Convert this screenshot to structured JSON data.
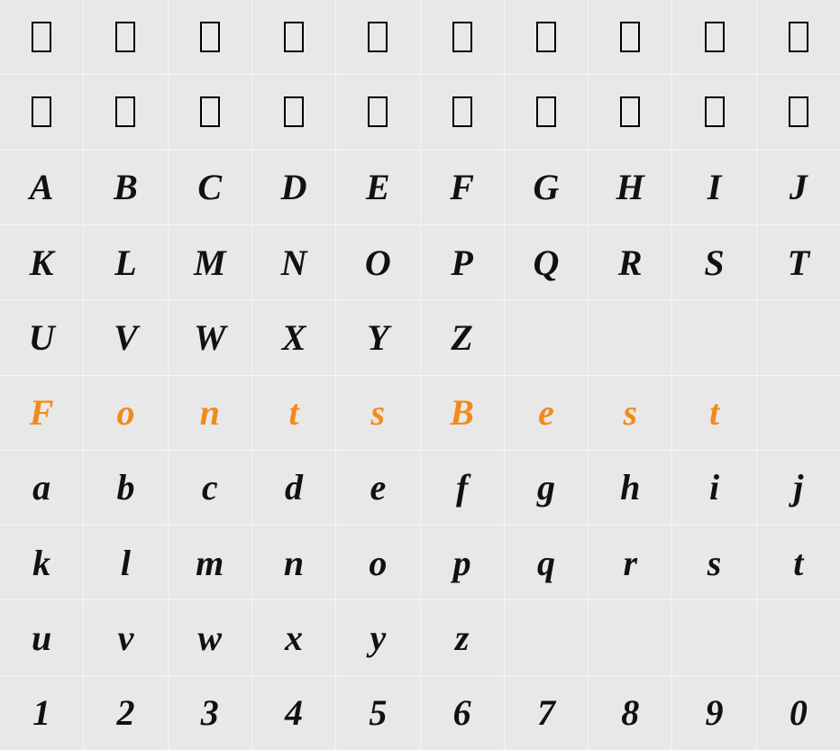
{
  "grid": {
    "columns": 10,
    "rows": 10,
    "background_color": "#e8e8e8",
    "gap_color": "#f5f5f5",
    "text_color": "#111111",
    "highlight_color": "#f28a1a",
    "font_size_pt": 30,
    "font_style": "italic cursive",
    "cells": [
      [
        {
          "t": "box"
        },
        {
          "t": "box"
        },
        {
          "t": "box"
        },
        {
          "t": "box"
        },
        {
          "t": "box"
        },
        {
          "t": "box"
        },
        {
          "t": "box"
        },
        {
          "t": "box"
        },
        {
          "t": "box"
        },
        {
          "t": "box"
        }
      ],
      [
        {
          "t": "box"
        },
        {
          "t": "box"
        },
        {
          "t": "box"
        },
        {
          "t": "box"
        },
        {
          "t": "box"
        },
        {
          "t": "box"
        },
        {
          "t": "box"
        },
        {
          "t": "box"
        },
        {
          "t": "box"
        },
        {
          "t": "box"
        }
      ],
      [
        {
          "c": "A"
        },
        {
          "c": "B"
        },
        {
          "c": "C"
        },
        {
          "c": "D"
        },
        {
          "c": "E"
        },
        {
          "c": "F"
        },
        {
          "c": "G"
        },
        {
          "c": "H"
        },
        {
          "c": "I"
        },
        {
          "c": "J"
        }
      ],
      [
        {
          "c": "K"
        },
        {
          "c": "L"
        },
        {
          "c": "M"
        },
        {
          "c": "N"
        },
        {
          "c": "O"
        },
        {
          "c": "P"
        },
        {
          "c": "Q"
        },
        {
          "c": "R"
        },
        {
          "c": "S"
        },
        {
          "c": "T"
        }
      ],
      [
        {
          "c": "U"
        },
        {
          "c": "V"
        },
        {
          "c": "W"
        },
        {
          "c": "X"
        },
        {
          "c": "Y"
        },
        {
          "c": "Z"
        },
        {
          "e": true
        },
        {
          "e": true
        },
        {
          "e": true
        },
        {
          "e": true
        }
      ],
      [
        {
          "c": "F",
          "hl": true
        },
        {
          "c": "o",
          "hl": true
        },
        {
          "c": "n",
          "hl": true
        },
        {
          "c": "t",
          "hl": true
        },
        {
          "c": "s",
          "hl": true
        },
        {
          "c": "B",
          "hl": true
        },
        {
          "c": "e",
          "hl": true
        },
        {
          "c": "s",
          "hl": true
        },
        {
          "c": "t",
          "hl": true
        },
        {
          "e": true
        }
      ],
      [
        {
          "c": "a"
        },
        {
          "c": "b"
        },
        {
          "c": "c"
        },
        {
          "c": "d"
        },
        {
          "c": "e"
        },
        {
          "c": "f"
        },
        {
          "c": "g"
        },
        {
          "c": "h"
        },
        {
          "c": "i"
        },
        {
          "c": "j"
        }
      ],
      [
        {
          "c": "k"
        },
        {
          "c": "l"
        },
        {
          "c": "m"
        },
        {
          "c": "n"
        },
        {
          "c": "o"
        },
        {
          "c": "p"
        },
        {
          "c": "q"
        },
        {
          "c": "r"
        },
        {
          "c": "s"
        },
        {
          "c": "t"
        }
      ],
      [
        {
          "c": "u"
        },
        {
          "c": "v"
        },
        {
          "c": "w"
        },
        {
          "c": "x"
        },
        {
          "c": "y"
        },
        {
          "c": "z"
        },
        {
          "e": true
        },
        {
          "e": true
        },
        {
          "e": true
        },
        {
          "e": true
        }
      ],
      [
        {
          "c": "1"
        },
        {
          "c": "2"
        },
        {
          "c": "3"
        },
        {
          "c": "4"
        },
        {
          "c": "5"
        },
        {
          "c": "6"
        },
        {
          "c": "7"
        },
        {
          "c": "8"
        },
        {
          "c": "9"
        },
        {
          "c": "0"
        }
      ]
    ]
  }
}
